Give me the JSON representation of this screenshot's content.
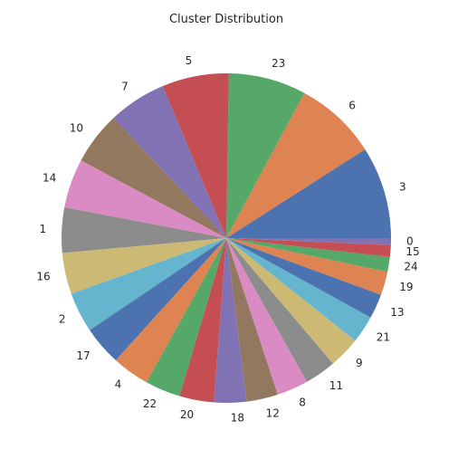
{
  "chart_data": {
    "type": "pie",
    "title": "Cluster Distribution",
    "start_angle_deg": 0,
    "direction": "counterclockwise",
    "slices": [
      {
        "label": "3",
        "value": 9.4,
        "color": "#4c72b0"
      },
      {
        "label": "6",
        "value": 8.4,
        "color": "#dd8452"
      },
      {
        "label": "23",
        "value": 7.9,
        "color": "#55a868"
      },
      {
        "label": "5",
        "value": 6.8,
        "color": "#c44e52"
      },
      {
        "label": "7",
        "value": 5.9,
        "color": "#8172b3"
      },
      {
        "label": "10",
        "value": 5.4,
        "color": "#937860"
      },
      {
        "label": "14",
        "value": 5.0,
        "color": "#da8bc3"
      },
      {
        "label": "1",
        "value": 4.6,
        "color": "#8c8c8c"
      },
      {
        "label": "16",
        "value": 4.2,
        "color": "#ccb974"
      },
      {
        "label": "2",
        "value": 4.1,
        "color": "#64b5cd"
      },
      {
        "label": "17",
        "value": 4.0,
        "color": "#4c72b0"
      },
      {
        "label": "4",
        "value": 3.8,
        "color": "#dd8452"
      },
      {
        "label": "22",
        "value": 3.6,
        "color": "#55a868"
      },
      {
        "label": "20",
        "value": 3.5,
        "color": "#c44e52"
      },
      {
        "label": "18",
        "value": 3.3,
        "color": "#8172b3"
      },
      {
        "label": "12",
        "value": 3.2,
        "color": "#937860"
      },
      {
        "label": "8",
        "value": 3.2,
        "color": "#da8bc3"
      },
      {
        "label": "11",
        "value": 3.2,
        "color": "#8c8c8c"
      },
      {
        "label": "9",
        "value": 3.2,
        "color": "#ccb974"
      },
      {
        "label": "21",
        "value": 2.8,
        "color": "#64b5cd"
      },
      {
        "label": "13",
        "value": 2.5,
        "color": "#4c72b0"
      },
      {
        "label": "19",
        "value": 2.4,
        "color": "#dd8452"
      },
      {
        "label": "24",
        "value": 1.5,
        "color": "#55a868"
      },
      {
        "label": "15",
        "value": 1.2,
        "color": "#c44e52"
      },
      {
        "label": "0",
        "value": 0.7,
        "color": "#8172b3"
      }
    ]
  }
}
